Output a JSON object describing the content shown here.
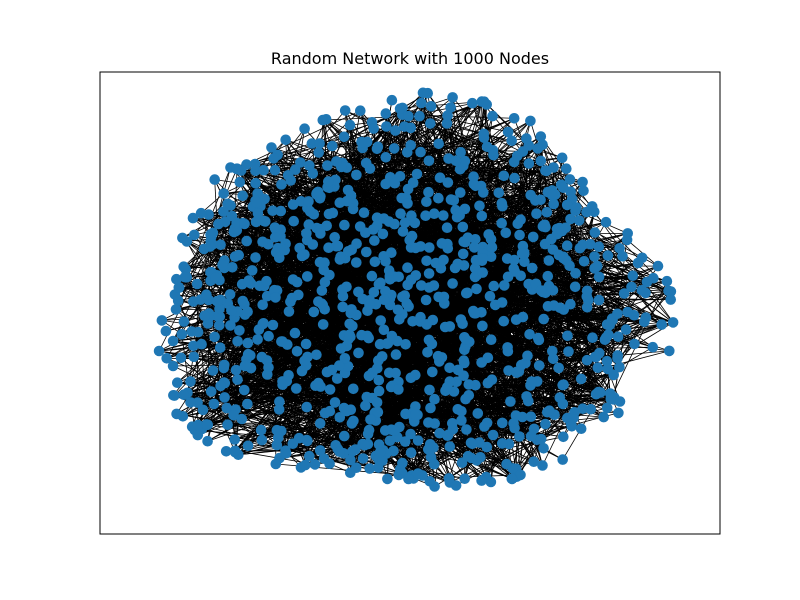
{
  "figure": {
    "title": "Random Network with 1000 Nodes"
  },
  "network": {
    "node_count": 1000,
    "node_color": "#1f77b4",
    "edge_color": "#000000",
    "background_color": "#ffffff",
    "frame_color": "#000000",
    "shape": "roughly elliptical cloud, denser black edges filling interior"
  }
}
